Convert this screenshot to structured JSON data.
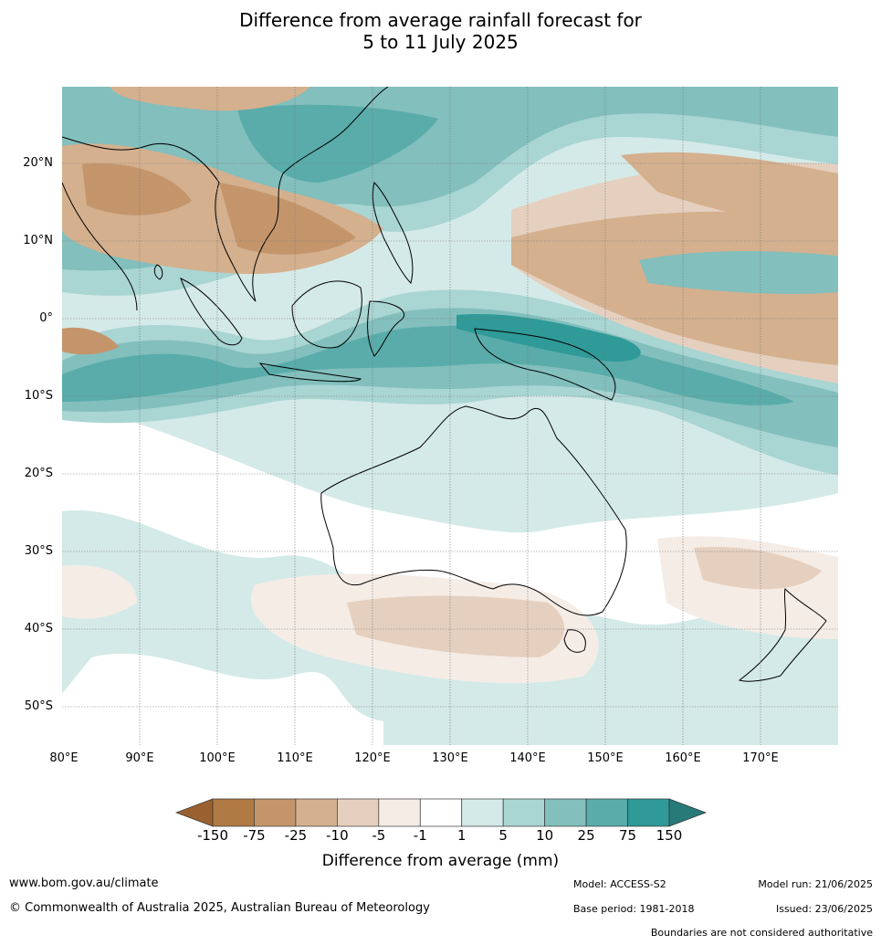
{
  "title_line1": "Difference from average rainfall forecast for",
  "title_line2": "5 to 11 July 2025",
  "lat_labels": [
    "20°N",
    "10°N",
    "0°",
    "10°S",
    "20°S",
    "30°S",
    "40°S",
    "50°S"
  ],
  "lon_labels": [
    "80°E",
    "90°E",
    "100°E",
    "110°E",
    "120°E",
    "130°E",
    "140°E",
    "150°E",
    "160°E",
    "170°E"
  ],
  "colorbar": {
    "title": "Difference from average (mm)",
    "tick_labels": [
      "-150",
      "-75",
      "-25",
      "-10",
      "-5",
      "-1",
      "1",
      "5",
      "10",
      "25",
      "75",
      "150"
    ],
    "colors": [
      "#9a6030",
      "#b07a44",
      "#c4956b",
      "#d4b08e",
      "#e5d0bf",
      "#f5ece6",
      "#ffffff",
      "#d4eae8",
      "#a9d5d3",
      "#82bfbd",
      "#59acaa",
      "#2f9a97",
      "#277a78"
    ]
  },
  "footer": {
    "website": "www.bom.gov.au/climate",
    "copyright": "© Commonwealth of Australia 2025, Australian Bureau of Meteorology",
    "model": "Model: ACCESS-S2",
    "model_run": "Model run: 21/06/2025",
    "base_period": "Base period: 1981-2018",
    "issued": "Issued: 23/06/2025",
    "disclaimer": "Boundaries are not considered authoritative"
  }
}
